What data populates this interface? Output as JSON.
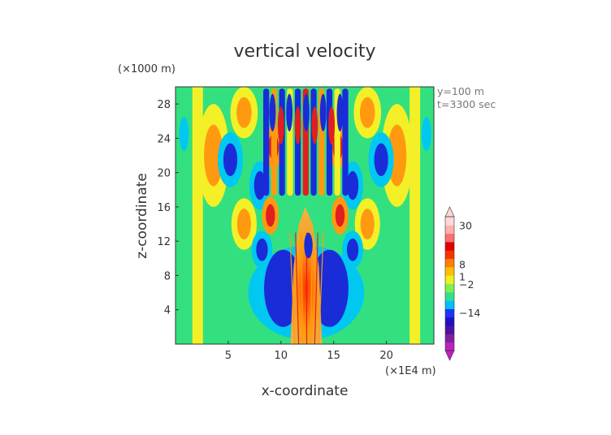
{
  "chart_data": {
    "type": "heatmap",
    "title": "vertical velocity",
    "xlabel": "x-coordinate",
    "ylabel": "z-coordinate",
    "x_unit": "(×1E4 m)",
    "y_unit": "(×1000 m)",
    "annotations": [
      "y=100 m",
      "t=3300 sec"
    ],
    "x_range": [
      0,
      24.5
    ],
    "y_range": [
      0,
      30
    ],
    "x_ticks": [
      5,
      10,
      15,
      20
    ],
    "y_ticks": [
      4,
      8,
      12,
      16,
      20,
      24,
      28
    ],
    "colorbar": {
      "labels": [
        {
          "value": 30,
          "text": "30"
        },
        {
          "value": 8,
          "text": "8"
        },
        {
          "value": 1,
          "text": "1"
        },
        {
          "value": -2,
          "text": "−2"
        },
        {
          "value": -14,
          "text": "−14"
        }
      ],
      "colors": [
        "#c020c0",
        "#8020a0",
        "#5010a0",
        "#2010c0",
        "#2030ff",
        "#00c0ff",
        "#30e090",
        "#80f050",
        "#f0f020",
        "#ffc000",
        "#ff8000",
        "#ff3000",
        "#e00000",
        "#ff7070",
        "#ffb0b0",
        "#ffd8d8"
      ]
    },
    "colors": {
      "background_field": "#33e080",
      "light_blue": "#00c8f0",
      "dark_blue": "#1a2cd8",
      "yellow": "#f4f028",
      "orange": "#ff9a10",
      "red": "#e02020"
    }
  }
}
